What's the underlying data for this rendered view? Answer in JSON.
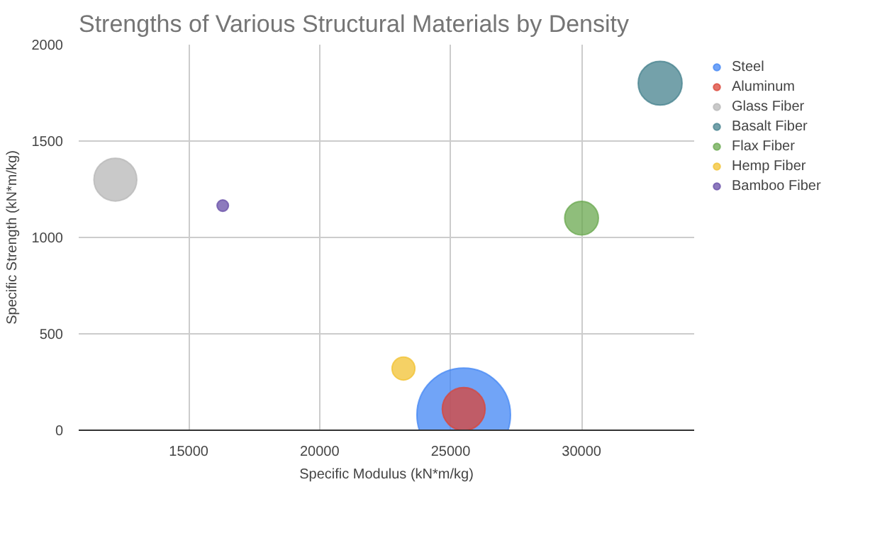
{
  "chart_data": {
    "type": "bubble",
    "title": "Strengths of Various Structural Materials by Density",
    "xlabel": "Specific Modulus (kN*m/kg)",
    "ylabel": "Specific Strength (kN*m/kg)",
    "xlim": [
      10800,
      34300
    ],
    "ylim": [
      0,
      2000
    ],
    "xticks": [
      15000,
      20000,
      25000,
      30000
    ],
    "yticks": [
      0,
      500,
      1000,
      1500,
      2000
    ],
    "grid": true,
    "legend": "top right",
    "series": [
      {
        "name": "Steel",
        "color": "#4285f4",
        "x": [
          25500
        ],
        "values": [
          80
        ],
        "sizes": [
          1
        ]
      },
      {
        "name": "Aluminum",
        "color": "#db4437",
        "x": [
          25500
        ],
        "values": [
          110
        ],
        "sizes": [
          0.21
        ]
      },
      {
        "name": "Glass Fiber",
        "color": "#b7b7b7",
        "x": [
          12200
        ],
        "values": [
          1300
        ],
        "sizes": [
          0.21
        ]
      },
      {
        "name": "Basalt Fiber",
        "color": "#45818e",
        "x": [
          33000
        ],
        "values": [
          1800
        ],
        "sizes": [
          0.22
        ]
      },
      {
        "name": "Flax Fiber",
        "color": "#6aa84f",
        "x": [
          30000
        ],
        "values": [
          1100
        ],
        "sizes": [
          0.13
        ]
      },
      {
        "name": "Hemp Fiber",
        "color": "#f1c232",
        "x": [
          23200
        ],
        "values": [
          320
        ],
        "sizes": [
          0.06
        ]
      },
      {
        "name": "Bamboo Fiber",
        "color": "#674ea7",
        "x": [
          16300
        ],
        "values": [
          1165
        ],
        "sizes": [
          0.015
        ]
      }
    ]
  }
}
